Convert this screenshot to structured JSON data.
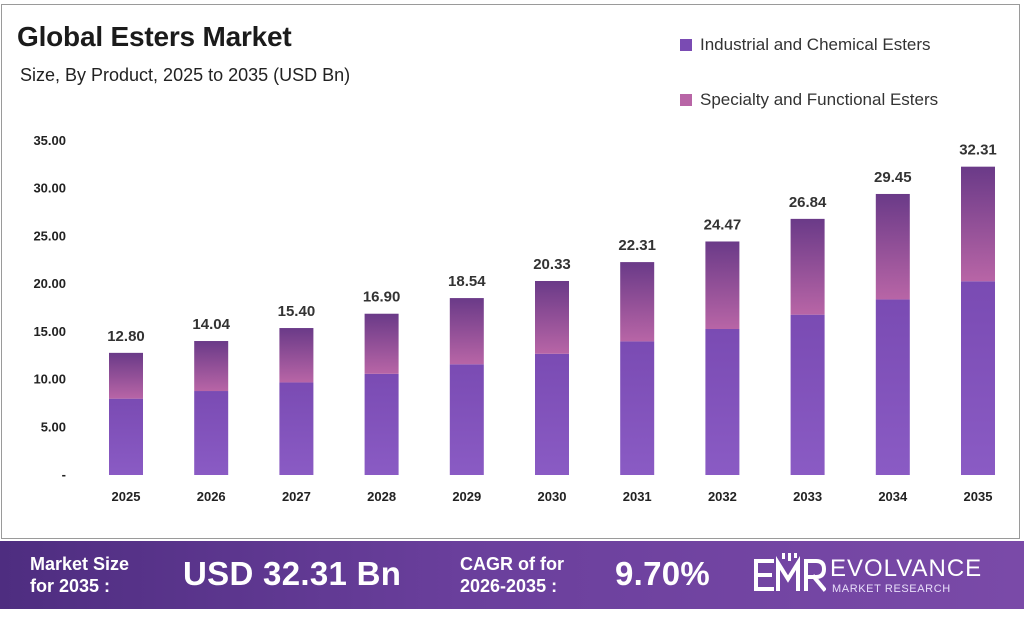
{
  "colors": {
    "series1_top": "#7a4bb3",
    "series1_bottom": "#8a5bc4",
    "series2_top": "#6a3a88",
    "series2_bottom": "#b865a6",
    "banner": "#5e3591"
  },
  "chart_data": {
    "type": "bar",
    "stacked": true,
    "title": "Global Esters Market",
    "subtitle": "Size, By Product, 2025 to 2035 (USD Bn)",
    "categories": [
      "2025",
      "2026",
      "2027",
      "2028",
      "2029",
      "2030",
      "2031",
      "2032",
      "2033",
      "2034",
      "2035"
    ],
    "series": [
      {
        "name": "Industrial and Chemical Esters",
        "values": [
          8.0,
          8.8,
          9.7,
          10.6,
          11.6,
          12.7,
          14.0,
          15.3,
          16.8,
          18.4,
          20.3
        ]
      },
      {
        "name": "Specialty and Functional Esters",
        "values": [
          4.8,
          5.24,
          5.7,
          6.3,
          6.94,
          7.63,
          8.31,
          9.17,
          10.04,
          11.05,
          12.01
        ]
      }
    ],
    "totals": [
      "12.80",
      "14.04",
      "15.40",
      "16.90",
      "18.54",
      "20.33",
      "22.31",
      "24.47",
      "26.84",
      "29.45",
      "32.31"
    ],
    "y_ticks": [
      "-",
      "5.00",
      "10.00",
      "15.00",
      "20.00",
      "25.00",
      "30.00",
      "35.00"
    ],
    "ylim": [
      0,
      35
    ],
    "xlabel": "",
    "ylabel": "",
    "legend_position": "top-right",
    "grid": false
  },
  "banner": {
    "market_size_label_line1": "Market Size",
    "market_size_label_line2": "for 2035 :",
    "market_size_value": "USD 32.31 Bn",
    "cagr_label_line1": "CAGR of for",
    "cagr_label_line2": "2026-2035 :",
    "cagr_value": "9.70%",
    "logo_name": "EVOLVANCE",
    "logo_sub": "MARKET RESEARCH"
  }
}
